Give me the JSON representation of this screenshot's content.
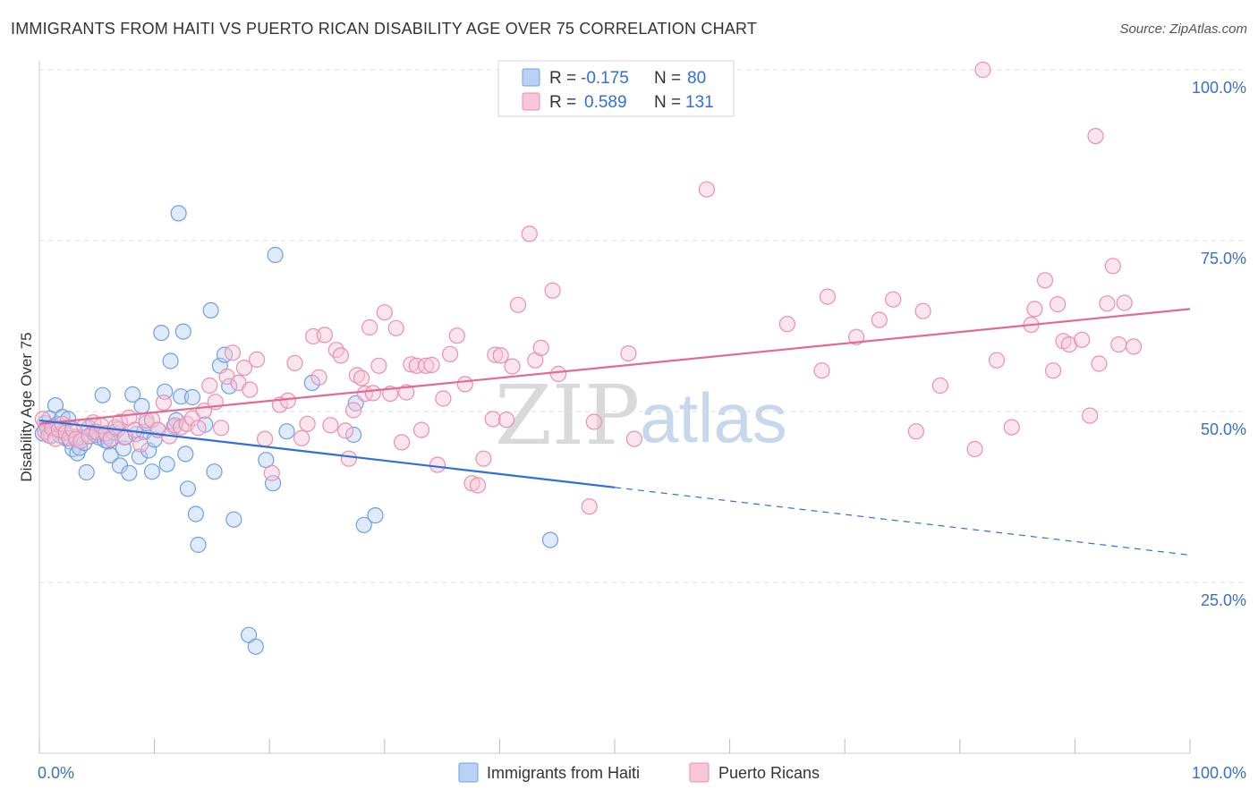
{
  "title": "IMMIGRANTS FROM HAITI VS PUERTO RICAN DISABILITY AGE OVER 75 CORRELATION CHART",
  "source": "Source: ZipAtlas.com",
  "colors": {
    "haiti": "#6f9fe3",
    "haiti_fill": "#b9d1f5",
    "haiti_line": "#2f6fd6",
    "pr": "#ea8fb0",
    "pr_fill": "#f7c6d7",
    "pr_line": "#e06b95",
    "grid": "#dddddd",
    "axis_text": "#3a6fc4"
  },
  "legend": {
    "rows": [
      {
        "r_label": "R =",
        "r_value": "-0.175",
        "n_label": "N =",
        "n_value": "80"
      },
      {
        "r_label": "R =",
        "r_value": "0.589",
        "n_label": "N =",
        "n_value": "131"
      }
    ]
  },
  "watermark": {
    "zip": "ZIP",
    "atlas": "atlas"
  },
  "chart_data": {
    "type": "scatter",
    "title": "IMMIGRANTS FROM HAITI VS PUERTO RICAN DISABILITY AGE OVER 75 CORRELATION CHART",
    "xlabel": "",
    "ylabel": "Disability Age Over 75",
    "xlim": [
      0,
      100
    ],
    "ylim": [
      0,
      102
    ],
    "x_tick_labels": [
      "0.0%",
      "100.0%"
    ],
    "y_ticks": [
      25,
      50,
      75,
      100
    ],
    "y_tick_labels": [
      "25.0%",
      "50.0%",
      "75.0%",
      "100.0%"
    ],
    "legend_position": "top-center",
    "series": [
      {
        "name": "Immigrants from Haiti",
        "r": -0.175,
        "n": 80,
        "trend": {
          "x0": 0,
          "y0": 48.7,
          "x1": 50,
          "y1": 38.9,
          "dashed_to_x": 100,
          "dashed_to_y": 29
        },
        "points": [
          [
            0.3,
            46.8
          ],
          [
            0.5,
            48.3
          ],
          [
            0.7,
            47.5
          ],
          [
            0.9,
            49.0
          ],
          [
            1.0,
            46.4
          ],
          [
            1.2,
            47.8
          ],
          [
            1.4,
            50.9
          ],
          [
            1.6,
            48.2
          ],
          [
            1.8,
            46.5
          ],
          [
            2.0,
            49.2
          ],
          [
            2.1,
            47.0
          ],
          [
            2.3,
            46.1
          ],
          [
            2.5,
            48.9
          ],
          [
            2.7,
            45.6
          ],
          [
            2.9,
            44.5
          ],
          [
            3.1,
            46.3
          ],
          [
            3.3,
            43.9
          ],
          [
            3.5,
            44.7
          ],
          [
            3.7,
            46.2
          ],
          [
            3.9,
            45.4
          ],
          [
            4.1,
            41.1
          ],
          [
            4.3,
            47.6
          ],
          [
            4.5,
            46.4
          ],
          [
            4.7,
            47.0
          ],
          [
            4.9,
            46.6
          ],
          [
            5.2,
            46.2
          ],
          [
            5.5,
            52.4
          ],
          [
            5.7,
            45.8
          ],
          [
            5.9,
            46.4
          ],
          [
            6.0,
            45.6
          ],
          [
            6.2,
            43.6
          ],
          [
            6.5,
            46.9
          ],
          [
            6.8,
            47.4
          ],
          [
            7.0,
            42.1
          ],
          [
            7.3,
            44.6
          ],
          [
            7.5,
            46.3
          ],
          [
            7.8,
            41.0
          ],
          [
            8.1,
            52.5
          ],
          [
            8.4,
            46.7
          ],
          [
            8.7,
            43.4
          ],
          [
            8.9,
            50.8
          ],
          [
            9.1,
            47.0
          ],
          [
            9.3,
            48.3
          ],
          [
            9.5,
            44.3
          ],
          [
            9.8,
            41.2
          ],
          [
            10.0,
            45.9
          ],
          [
            10.3,
            47.3
          ],
          [
            10.6,
            61.5
          ],
          [
            10.9,
            52.9
          ],
          [
            11.1,
            42.3
          ],
          [
            11.4,
            57.4
          ],
          [
            11.7,
            47.8
          ],
          [
            11.9,
            48.7
          ],
          [
            12.1,
            79.0
          ],
          [
            12.3,
            52.2
          ],
          [
            12.5,
            61.7
          ],
          [
            12.7,
            43.8
          ],
          [
            12.9,
            38.7
          ],
          [
            13.3,
            52.1
          ],
          [
            13.6,
            35.0
          ],
          [
            13.8,
            30.5
          ],
          [
            14.4,
            48.1
          ],
          [
            14.9,
            64.8
          ],
          [
            15.2,
            41.2
          ],
          [
            15.7,
            56.7
          ],
          [
            16.1,
            58.3
          ],
          [
            16.5,
            53.7
          ],
          [
            16.9,
            34.2
          ],
          [
            18.2,
            17.3
          ],
          [
            18.8,
            15.6
          ],
          [
            19.7,
            42.9
          ],
          [
            20.3,
            39.5
          ],
          [
            20.5,
            72.9
          ],
          [
            21.5,
            47.1
          ],
          [
            23.7,
            54.2
          ],
          [
            27.3,
            46.6
          ],
          [
            27.5,
            51.2
          ],
          [
            28.2,
            33.4
          ],
          [
            29.2,
            34.8
          ],
          [
            44.4,
            31.2
          ]
        ]
      },
      {
        "name": "Puerto Ricans",
        "r": 0.589,
        "n": 131,
        "trend": {
          "x0": 0,
          "y0": 48.2,
          "x1": 100,
          "y1": 65.0
        },
        "points": [
          [
            0.3,
            48.9
          ],
          [
            0.5,
            47.1
          ],
          [
            0.8,
            46.5
          ],
          [
            1.1,
            47.6
          ],
          [
            1.4,
            46.0
          ],
          [
            1.7,
            47.3
          ],
          [
            2.0,
            48.2
          ],
          [
            2.3,
            46.9
          ],
          [
            2.6,
            46.1
          ],
          [
            2.9,
            47.4
          ],
          [
            3.2,
            46.0
          ],
          [
            3.6,
            45.7
          ],
          [
            3.9,
            47.8
          ],
          [
            4.3,
            46.4
          ],
          [
            4.7,
            48.4
          ],
          [
            5.0,
            47.0
          ],
          [
            5.4,
            47.9
          ],
          [
            5.8,
            46.8
          ],
          [
            6.2,
            46.0
          ],
          [
            6.6,
            47.7
          ],
          [
            7.0,
            48.5
          ],
          [
            7.4,
            46.2
          ],
          [
            7.8,
            49.1
          ],
          [
            8.3,
            47.3
          ],
          [
            8.8,
            45.2
          ],
          [
            9.3,
            48.7
          ],
          [
            9.8,
            48.8
          ],
          [
            10.3,
            47.3
          ],
          [
            10.8,
            51.3
          ],
          [
            11.3,
            46.4
          ],
          [
            11.8,
            48.0
          ],
          [
            12.3,
            47.7
          ],
          [
            12.8,
            48.2
          ],
          [
            13.3,
            49.0
          ],
          [
            13.8,
            47.6
          ],
          [
            14.3,
            50.1
          ],
          [
            14.8,
            53.8
          ],
          [
            15.3,
            51.4
          ],
          [
            15.8,
            47.6
          ],
          [
            16.3,
            55.1
          ],
          [
            16.8,
            58.6
          ],
          [
            17.3,
            54.2
          ],
          [
            17.8,
            56.4
          ],
          [
            18.3,
            53.2
          ],
          [
            18.9,
            57.6
          ],
          [
            19.6,
            46.0
          ],
          [
            20.2,
            41.0
          ],
          [
            20.9,
            51.0
          ],
          [
            21.6,
            51.6
          ],
          [
            22.2,
            57.1
          ],
          [
            22.8,
            46.1
          ],
          [
            23.3,
            48.2
          ],
          [
            23.8,
            61.0
          ],
          [
            24.3,
            55.0
          ],
          [
            24.8,
            61.2
          ],
          [
            25.3,
            48.0
          ],
          [
            25.8,
            59.0
          ],
          [
            26.2,
            58.2
          ],
          [
            26.6,
            47.2
          ],
          [
            26.9,
            43.1
          ],
          [
            27.3,
            50.2
          ],
          [
            27.6,
            55.3
          ],
          [
            28.0,
            54.9
          ],
          [
            28.3,
            52.6
          ],
          [
            28.7,
            62.3
          ],
          [
            29.0,
            52.7
          ],
          [
            29.5,
            56.7
          ],
          [
            30.0,
            64.5
          ],
          [
            30.5,
            52.6
          ],
          [
            31.0,
            62.2
          ],
          [
            31.5,
            45.5
          ],
          [
            31.9,
            52.8
          ],
          [
            32.3,
            56.9
          ],
          [
            32.8,
            56.7
          ],
          [
            33.2,
            47.3
          ],
          [
            33.6,
            56.7
          ],
          [
            34.1,
            56.8
          ],
          [
            34.6,
            42.2
          ],
          [
            35.1,
            51.9
          ],
          [
            35.7,
            58.4
          ],
          [
            36.3,
            61.1
          ],
          [
            37.0,
            54.0
          ],
          [
            37.6,
            39.5
          ],
          [
            38.1,
            39.2
          ],
          [
            38.6,
            43.1
          ],
          [
            39.4,
            48.9
          ],
          [
            39.6,
            58.3
          ],
          [
            40.1,
            58.2
          ],
          [
            40.6,
            48.8
          ],
          [
            41.1,
            56.6
          ],
          [
            41.6,
            65.6
          ],
          [
            42.6,
            76.0
          ],
          [
            43.1,
            57.5
          ],
          [
            43.6,
            59.3
          ],
          [
            44.6,
            67.7
          ],
          [
            45.1,
            55.5
          ],
          [
            47.8,
            36.1
          ],
          [
            48.2,
            48.5
          ],
          [
            51.2,
            58.5
          ],
          [
            51.7,
            46.0
          ],
          [
            58.0,
            82.5
          ],
          [
            65.0,
            62.8
          ],
          [
            68.0,
            56.0
          ],
          [
            68.5,
            66.8
          ],
          [
            71.0,
            60.9
          ],
          [
            73.0,
            63.4
          ],
          [
            74.2,
            66.4
          ],
          [
            76.2,
            47.1
          ],
          [
            76.8,
            64.7
          ],
          [
            78.3,
            53.8
          ],
          [
            81.3,
            44.5
          ],
          [
            82.0,
            100.0
          ],
          [
            83.2,
            57.5
          ],
          [
            84.5,
            47.7
          ],
          [
            86.2,
            62.7
          ],
          [
            86.5,
            65.0
          ],
          [
            87.4,
            69.2
          ],
          [
            88.1,
            56.0
          ],
          [
            88.5,
            65.7
          ],
          [
            89.0,
            60.3
          ],
          [
            89.5,
            59.8
          ],
          [
            90.6,
            60.5
          ],
          [
            91.3,
            49.4
          ],
          [
            91.8,
            90.3
          ],
          [
            92.1,
            57.0
          ],
          [
            92.8,
            65.8
          ],
          [
            93.3,
            71.3
          ],
          [
            93.8,
            59.8
          ],
          [
            94.3,
            65.9
          ],
          [
            95.1,
            59.5
          ]
        ]
      }
    ]
  }
}
